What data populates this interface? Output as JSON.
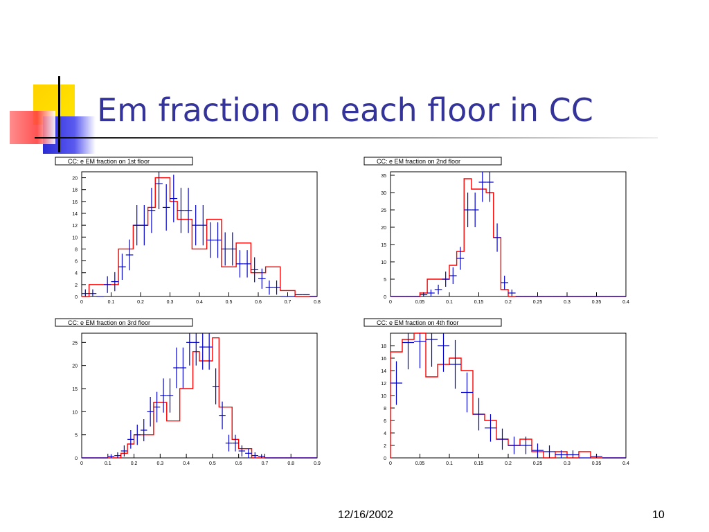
{
  "slide": {
    "title": "Em fraction on each floor in CC",
    "date": "12/16/2002",
    "page_number": "10",
    "colors": {
      "title": "#333399",
      "histogram": "#ff0000",
      "data_points": "#0000cc"
    }
  },
  "chart_data": [
    {
      "type": "histogram",
      "title": "CC: e EM fraction on 1st floor",
      "xlim": [
        0,
        0.8
      ],
      "ylim": [
        0,
        21
      ],
      "xticks": [
        "0",
        "0.1",
        "0.2",
        "0.3",
        "0.4",
        "0.5",
        "0.6",
        "0.7",
        "0.8"
      ],
      "yticks": [
        "0",
        "2",
        "4",
        "6",
        "8",
        "10",
        "12",
        "14",
        "16",
        "18",
        "20"
      ],
      "bin_edges": [
        0,
        0.025,
        0.05,
        0.075,
        0.1,
        0.125,
        0.15,
        0.175,
        0.2,
        0.225,
        0.25,
        0.275,
        0.3,
        0.325,
        0.35,
        0.375,
        0.4,
        0.425,
        0.45,
        0.475,
        0.5,
        0.525,
        0.55,
        0.575,
        0.6,
        0.625,
        0.65,
        0.675,
        0.7,
        0.725,
        0.75,
        0.775,
        0.8
      ],
      "histogram": [
        0,
        2,
        2,
        2,
        2,
        8,
        8,
        12,
        12,
        15,
        20,
        20,
        16,
        13,
        13,
        8,
        8,
        13,
        13,
        5,
        5,
        9,
        9,
        4,
        4,
        5,
        5,
        1,
        1,
        0,
        0,
        0
      ],
      "points": {
        "x": [
          0.0125,
          0.0375,
          0.0625,
          0.0875,
          0.1125,
          0.1375,
          0.1625,
          0.1875,
          0.2125,
          0.2375,
          0.2625,
          0.2875,
          0.3125,
          0.3375,
          0.3625,
          0.3875,
          0.4125,
          0.4375,
          0.4625,
          0.4875,
          0.5125,
          0.5375,
          0.5625,
          0.5875,
          0.6125,
          0.6375,
          0.6625,
          0.6875,
          0.7125,
          0.7375,
          0.7625,
          0.7875
        ],
        "y": [
          0.5,
          0.5,
          0,
          2,
          2.5,
          5,
          7,
          12,
          12,
          14.5,
          19,
          15,
          16.5,
          14.5,
          14.5,
          12,
          12,
          9.5,
          9.5,
          8,
          8,
          5.5,
          5.5,
          4.5,
          3,
          1.5,
          1.5,
          0,
          0,
          0.3,
          0.3,
          0
        ],
        "err": [
          0.7,
          0.7,
          0,
          1.4,
          1.6,
          2.2,
          2.6,
          3.4,
          3.4,
          3.8,
          4.3,
          3.9,
          4,
          3.8,
          3.8,
          3.4,
          3.4,
          3,
          3,
          2.8,
          2.8,
          2.3,
          2.3,
          2.1,
          1.7,
          1.2,
          1.2,
          0,
          0,
          0,
          0,
          0
        ]
      }
    },
    {
      "type": "histogram",
      "title": "CC: e EM fraction on 2nd floor",
      "xlim": [
        0,
        0.4
      ],
      "ylim": [
        0,
        36
      ],
      "xticks": [
        "0",
        "0.05",
        "0.1",
        "0.15",
        "0.2",
        "0.25",
        "0.3",
        "0.35",
        "0.4"
      ],
      "yticks": [
        "0",
        "5",
        "10",
        "15",
        "20",
        "25",
        "30",
        "35"
      ],
      "bin_edges": [
        0,
        0.0125,
        0.025,
        0.0375,
        0.05,
        0.0625,
        0.075,
        0.0875,
        0.1,
        0.1125,
        0.125,
        0.1375,
        0.15,
        0.1625,
        0.175,
        0.1875,
        0.2,
        0.2125,
        0.225,
        0.2375,
        0.25,
        0.2625,
        0.275,
        0.2875,
        0.3,
        0.3125,
        0.325,
        0.3375,
        0.35,
        0.3625,
        0.375,
        0.3875,
        0.4
      ],
      "histogram": [
        0,
        0,
        0,
        0,
        1,
        5,
        5,
        5,
        9,
        13,
        34,
        31,
        31,
        30,
        17,
        2,
        0,
        0,
        0,
        0,
        0,
        0,
        0,
        0,
        0,
        0,
        0,
        0,
        0,
        0,
        0,
        0
      ],
      "points": {
        "x": [
          0.00625,
          0.01875,
          0.03125,
          0.04375,
          0.05625,
          0.06875,
          0.08125,
          0.09375,
          0.10625,
          0.11875,
          0.13125,
          0.14375,
          0.15625,
          0.16875,
          0.18125,
          0.19375,
          0.20625,
          0.21875,
          0.23125,
          0.24375,
          0.25625,
          0.26875,
          0.28125,
          0.29375,
          0.30625,
          0.31875,
          0.33125,
          0.34375,
          0.35625,
          0.36875,
          0.38125,
          0.39375
        ],
        "y": [
          0,
          0,
          0,
          0,
          0.5,
          1,
          2,
          5,
          6,
          11,
          25,
          25,
          33,
          33,
          17,
          4,
          1,
          0,
          0,
          0,
          0,
          0,
          0,
          0,
          0,
          0,
          0,
          0,
          0,
          0,
          0,
          0
        ],
        "err": [
          0,
          0,
          0,
          0,
          0.7,
          1,
          1.4,
          2.2,
          2.4,
          3.3,
          5,
          5,
          5.7,
          5.7,
          4.1,
          2,
          1,
          0,
          0,
          0,
          0,
          0,
          0,
          0,
          0,
          0,
          0,
          0,
          0,
          0,
          0,
          0
        ]
      }
    },
    {
      "type": "histogram",
      "title": "CC: e EM fraction on 3rd floor",
      "xlim": [
        0,
        0.9
      ],
      "ylim": [
        0,
        27
      ],
      "xticks": [
        "0",
        "0.1",
        "0.2",
        "0.3",
        "0.4",
        "0.5",
        "0.6",
        "0.7",
        "0.8",
        "0.9"
      ],
      "yticks": [
        "0",
        "5",
        "10",
        "15",
        "20",
        "25"
      ],
      "bin_edges": [
        0,
        0.025,
        0.05,
        0.075,
        0.1,
        0.125,
        0.15,
        0.175,
        0.2,
        0.225,
        0.25,
        0.275,
        0.3,
        0.325,
        0.35,
        0.375,
        0.4,
        0.425,
        0.45,
        0.475,
        0.5,
        0.525,
        0.55,
        0.575,
        0.6,
        0.625,
        0.65,
        0.675,
        0.7,
        0.725,
        0.75,
        0.775,
        0.8,
        0.825,
        0.85,
        0.875,
        0.9
      ],
      "histogram": [
        0,
        0,
        0,
        0,
        0,
        0,
        1,
        3,
        5,
        5,
        5,
        12,
        12,
        8,
        8,
        15,
        15,
        23,
        21,
        21,
        26,
        11,
        11,
        4,
        2,
        2,
        0,
        0,
        0,
        0,
        0,
        0,
        0,
        0,
        0,
        0
      ],
      "points": {
        "x": [
          0.0125,
          0.0375,
          0.0625,
          0.0875,
          0.1125,
          0.1375,
          0.1625,
          0.1875,
          0.2125,
          0.2375,
          0.2625,
          0.2875,
          0.3125,
          0.3375,
          0.3625,
          0.3875,
          0.4125,
          0.4375,
          0.4625,
          0.4875,
          0.5125,
          0.5375,
          0.5625,
          0.5875,
          0.6125,
          0.6375,
          0.6625,
          0.6875,
          0.7125,
          0.7375,
          0.7625,
          0.7875,
          0.8125,
          0.8375,
          0.8625,
          0.8875
        ],
        "y": [
          0,
          0,
          0,
          0,
          0.3,
          0.5,
          1.5,
          4,
          5,
          6,
          10,
          11,
          13.5,
          13.5,
          19.5,
          19.5,
          25,
          25,
          24,
          24,
          15.5,
          9.2,
          3.2,
          3.2,
          1.5,
          1,
          0.5,
          0.3,
          0,
          0,
          0,
          0,
          0,
          0,
          0,
          0
        ],
        "err": [
          0,
          0,
          0,
          0,
          0.5,
          0.7,
          1.2,
          2,
          2.2,
          2.4,
          3.2,
          3.3,
          3.7,
          3.7,
          4.4,
          4.4,
          5,
          5,
          4.9,
          4.9,
          3.9,
          3,
          1.8,
          1.8,
          1.2,
          1,
          0.7,
          0.5,
          0,
          0,
          0,
          0,
          0,
          0,
          0,
          0
        ]
      }
    },
    {
      "type": "histogram",
      "title": "CC: e EM fraction on 4th floor",
      "xlim": [
        0,
        0.4
      ],
      "ylim": [
        0,
        20
      ],
      "xticks": [
        "0",
        "0.05",
        "0.1",
        "0.15",
        "0.2",
        "0.25",
        "0.3",
        "0.35",
        "0.4"
      ],
      "yticks": [
        "0",
        "2",
        "4",
        "6",
        "8",
        "10",
        "12",
        "14",
        "16",
        "18"
      ],
      "bin_edges": [
        0,
        0.02,
        0.04,
        0.06,
        0.08,
        0.1,
        0.12,
        0.14,
        0.16,
        0.18,
        0.2,
        0.22,
        0.24,
        0.26,
        0.28,
        0.3,
        0.32,
        0.34,
        0.36,
        0.38,
        0.4
      ],
      "histogram": [
        17,
        19,
        20,
        13,
        15,
        16,
        14,
        7,
        6,
        3,
        2,
        3,
        1,
        0,
        1,
        0,
        1,
        0,
        0,
        0
      ],
      "points": {
        "x": [
          0.01,
          0.03,
          0.05,
          0.07,
          0.09,
          0.11,
          0.13,
          0.15,
          0.17,
          0.19,
          0.21,
          0.23,
          0.25,
          0.27,
          0.29,
          0.31,
          0.33,
          0.35,
          0.37,
          0.39
        ],
        "y": [
          12,
          18.5,
          18.7,
          19,
          18,
          15,
          10.5,
          7,
          4.8,
          3,
          2,
          2,
          1.2,
          1,
          0.5,
          0.5,
          0,
          0.2,
          0,
          0
        ],
        "err": [
          3.5,
          4.3,
          4.3,
          4.4,
          4.2,
          3.9,
          3.2,
          2.6,
          2.2,
          1.7,
          1.4,
          1.4,
          1.1,
          1,
          0.7,
          0.7,
          0,
          0.4,
          0,
          0
        ]
      }
    }
  ]
}
